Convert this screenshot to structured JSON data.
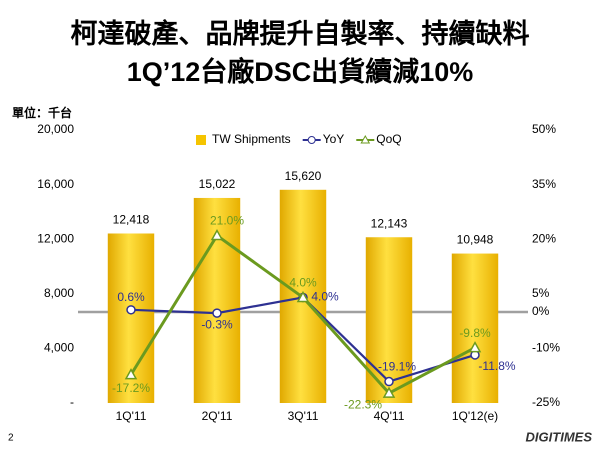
{
  "chart_data": {
    "type": "bar_line",
    "title": "柯達破產、品牌提升自製率、持續缺料",
    "subtitle": "1Q’12台廠DSC出貨續減10%",
    "unit": "單位：千台",
    "page_number": "2",
    "logo": "DIGITIMES",
    "categories": [
      "1Q'11",
      "2Q'11",
      "3Q'11",
      "4Q'11",
      "1Q'12(e)"
    ],
    "ylim": [
      0,
      20000
    ],
    "yticks": [
      {
        "value": 0,
        "label": "-"
      },
      {
        "value": 4000,
        "label": "4,000"
      },
      {
        "value": 8000,
        "label": "8,000"
      },
      {
        "value": 12000,
        "label": "12,000"
      },
      {
        "value": 16000,
        "label": "16,000"
      },
      {
        "value": 20000,
        "label": "20,000"
      }
    ],
    "y2lim": [
      -25,
      50
    ],
    "y2ticks": [
      {
        "value": -25,
        "label": "-25%"
      },
      {
        "value": -10,
        "label": "-10%"
      },
      {
        "value": 0,
        "label": "0%"
      },
      {
        "value": 5,
        "label": "5%"
      },
      {
        "value": 20,
        "label": "20%"
      },
      {
        "value": 35,
        "label": "35%"
      },
      {
        "value": 50,
        "label": "50%"
      }
    ],
    "series": [
      {
        "name": "TW Shipments",
        "type": "bar",
        "color": "#f5c400",
        "values": [
          12418,
          15022,
          15620,
          12143,
          10948
        ],
        "value_labels": [
          "12,418",
          "15,022",
          "15,620",
          "12,143",
          "10,948"
        ]
      },
      {
        "name": "YoY",
        "type": "line",
        "axis": "y2",
        "color": "#2e3192",
        "marker": "circle",
        "values": [
          0.6,
          -0.3,
          4.0,
          -19.1,
          -11.8
        ],
        "value_labels": [
          "0.6%",
          "-0.3%",
          "4.0%",
          "-19.1%",
          "-11.8%"
        ]
      },
      {
        "name": "QoQ",
        "type": "line",
        "axis": "y2",
        "color": "#6b9a1f",
        "marker": "triangle",
        "values": [
          -17.2,
          21.0,
          4.0,
          -22.3,
          -9.8
        ],
        "value_labels": [
          "-17.2%",
          "21.0%",
          "4.0%",
          "-22.3%",
          "-9.8%"
        ]
      }
    ]
  }
}
